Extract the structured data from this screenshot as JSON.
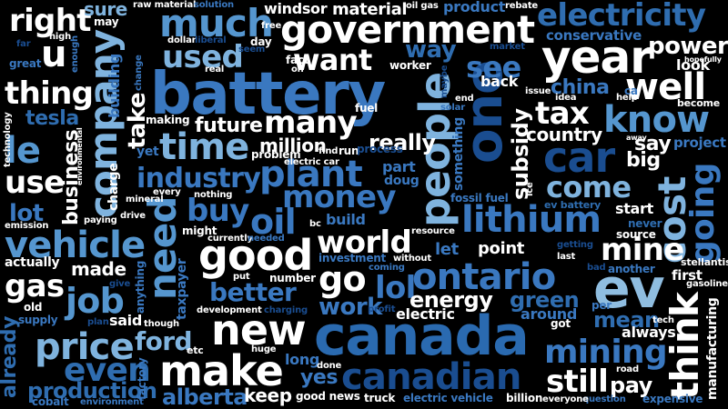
{
  "words": [
    {
      "text": "battery",
      "color": "#3a78c0"
    },
    {
      "text": "canada",
      "color": "#2a6ab0"
    },
    {
      "text": "government",
      "color": "#ffffff"
    },
    {
      "text": "ev",
      "color": "#8fbde0"
    },
    {
      "text": "one",
      "color": "#1a4d90"
    },
    {
      "text": "year",
      "color": "#ffffff"
    },
    {
      "text": "people",
      "color": "#7fb3de"
    },
    {
      "text": "much",
      "color": "#5596cf"
    },
    {
      "text": "company",
      "color": "#7fb3de"
    },
    {
      "text": "electricity",
      "color": "#2f6db0"
    },
    {
      "text": "car",
      "color": "#1a4d90"
    },
    {
      "text": "make",
      "color": "#ffffff"
    },
    {
      "text": "good",
      "color": "#ffffff"
    },
    {
      "text": "new",
      "color": "#ffffff"
    },
    {
      "text": "think",
      "color": "#ffffff"
    },
    {
      "text": "cost",
      "color": "#7fb3de"
    },
    {
      "text": "going",
      "color": "#3a78c0"
    },
    {
      "text": "lithium",
      "color": "#3a78c0"
    },
    {
      "text": "ontario",
      "color": "#3a78c0"
    },
    {
      "text": "canadian",
      "color": "#1a4d90"
    },
    {
      "text": "vehicle",
      "color": "#5596cf"
    },
    {
      "text": "price",
      "color": "#7fb3de"
    },
    {
      "text": "plant",
      "color": "#3a78c0"
    },
    {
      "text": "need",
      "color": "#5596cf"
    },
    {
      "text": "time",
      "color": "#7fb3de"
    },
    {
      "text": "know",
      "color": "#5596cf"
    },
    {
      "text": "well",
      "color": "#ffffff"
    },
    {
      "text": "mining",
      "color": "#3a78c0"
    },
    {
      "text": "even",
      "color": "#2f6db0"
    },
    {
      "text": "job",
      "color": "#5596cf"
    },
    {
      "text": "money",
      "color": "#3a78c0"
    },
    {
      "text": "oil",
      "color": "#3a78c0"
    },
    {
      "text": "world",
      "color": "#ffffff"
    },
    {
      "text": "mine",
      "color": "#ffffff"
    },
    {
      "text": "go",
      "color": "#ffffff"
    },
    {
      "text": "lol",
      "color": "#3a78c0"
    },
    {
      "text": "le",
      "color": "#5596cf"
    },
    {
      "text": "right",
      "color": "#ffffff"
    },
    {
      "text": "u",
      "color": "#ffffff"
    },
    {
      "text": "thing",
      "color": "#ffffff"
    },
    {
      "text": "want",
      "color": "#ffffff"
    },
    {
      "text": "used",
      "color": "#7fb3de"
    },
    {
      "text": "see",
      "color": "#3a78c0"
    },
    {
      "text": "tax",
      "color": "#ffffff"
    },
    {
      "text": "many",
      "color": "#ffffff"
    },
    {
      "text": "industry",
      "color": "#3a78c0"
    },
    {
      "text": "buy",
      "color": "#3a78c0"
    },
    {
      "text": "come",
      "color": "#7fb3de"
    },
    {
      "text": "better",
      "color": "#3a78c0"
    },
    {
      "text": "work",
      "color": "#3a78c0"
    },
    {
      "text": "still",
      "color": "#ffffff"
    },
    {
      "text": "use",
      "color": "#ffffff"
    },
    {
      "text": "gas",
      "color": "#ffffff"
    },
    {
      "text": "ford",
      "color": "#7fb3de"
    },
    {
      "text": "production",
      "color": "#2f6db0"
    },
    {
      "text": "alberta",
      "color": "#3a78c0"
    },
    {
      "text": "energy",
      "color": "#ffffff"
    },
    {
      "text": "green",
      "color": "#2f6db0"
    },
    {
      "text": "power",
      "color": "#ffffff"
    },
    {
      "text": "way",
      "color": "#2f6db0"
    },
    {
      "text": "china",
      "color": "#3a78c0"
    },
    {
      "text": "take",
      "color": "#ffffff"
    },
    {
      "text": "future",
      "color": "#ffffff"
    },
    {
      "text": "lot",
      "color": "#3a78c0"
    },
    {
      "text": "tesla",
      "color": "#2f6db0"
    },
    {
      "text": "business",
      "color": "#ffffff"
    },
    {
      "text": "subsidy",
      "color": "#ffffff"
    },
    {
      "text": "really",
      "color": "#ffffff"
    },
    {
      "text": "million",
      "color": "#ffffff"
    },
    {
      "text": "mean",
      "color": "#2f6db0"
    },
    {
      "text": "pay",
      "color": "#ffffff"
    },
    {
      "text": "yes",
      "color": "#3a78c0"
    },
    {
      "text": "keep",
      "color": "#ffffff"
    },
    {
      "text": "say",
      "color": "#ffffff"
    },
    {
      "text": "big",
      "color": "#ffffff"
    },
    {
      "text": "country",
      "color": "#ffffff"
    },
    {
      "text": "already",
      "color": "#2f6db0"
    },
    {
      "text": "made",
      "color": "#ffffff"
    },
    {
      "text": "sure",
      "color": "#7fb3de"
    },
    {
      "text": "material",
      "color": "#ffffff"
    },
    {
      "text": "windsor",
      "color": "#ffffff"
    },
    {
      "text": "product",
      "color": "#3a78c0"
    },
    {
      "text": "conservative",
      "color": "#3a78c0"
    },
    {
      "text": "look",
      "color": "#ffffff"
    },
    {
      "text": "back",
      "color": "#ffffff"
    },
    {
      "text": "project",
      "color": "#3a78c0"
    },
    {
      "text": "actually",
      "color": "#ffffff"
    },
    {
      "text": "build",
      "color": "#3a78c0"
    },
    {
      "text": "point",
      "color": "#ffffff"
    },
    {
      "text": "let",
      "color": "#3a78c0"
    },
    {
      "text": "start",
      "color": "#ffffff"
    },
    {
      "text": "first",
      "color": "#ffffff"
    },
    {
      "text": "said",
      "color": "#ffffff"
    },
    {
      "text": "always",
      "color": "#ffffff"
    },
    {
      "text": "around",
      "color": "#3a78c0"
    },
    {
      "text": "electric",
      "color": "#ffffff"
    },
    {
      "text": "long",
      "color": "#3a78c0"
    },
    {
      "text": "charge",
      "color": "#ffffff"
    },
    {
      "text": "building",
      "color": "#3a78c0"
    },
    {
      "text": "part",
      "color": "#3a78c0"
    },
    {
      "text": "doug",
      "color": "#3a78c0"
    },
    {
      "text": "something",
      "color": "#3a78c0"
    },
    {
      "text": "fossil fuel",
      "color": "#3a78c0"
    },
    {
      "text": "ev battery",
      "color": "#2f6db0"
    },
    {
      "text": "never",
      "color": "#2f6db0"
    },
    {
      "text": "source",
      "color": "#ffffff"
    },
    {
      "text": "getting",
      "color": "#1a4d90"
    },
    {
      "text": "another",
      "color": "#3a78c0"
    },
    {
      "text": "stellantis",
      "color": "#ffffff"
    },
    {
      "text": "gasoline",
      "color": "#ffffff"
    },
    {
      "text": "manufacturing",
      "color": "#ffffff"
    },
    {
      "text": "expensive",
      "color": "#3a78c0"
    },
    {
      "text": "question",
      "color": "#3a78c0"
    },
    {
      "text": "everyone",
      "color": "#ffffff"
    },
    {
      "text": "billion",
      "color": "#ffffff"
    },
    {
      "text": "electric vehicle",
      "color": "#3a78c0"
    },
    {
      "text": "truck",
      "color": "#ffffff"
    },
    {
      "text": "good news",
      "color": "#ffffff"
    },
    {
      "text": "done",
      "color": "#ffffff"
    },
    {
      "text": "huge",
      "color": "#ffffff"
    },
    {
      "text": "etc",
      "color": "#ffffff"
    },
    {
      "text": "though",
      "color": "#ffffff"
    },
    {
      "text": "factory",
      "color": "#3a78c0"
    },
    {
      "text": "environment",
      "color": "#3a78c0"
    },
    {
      "text": "cobalt",
      "color": "#3a78c0"
    },
    {
      "text": "plan",
      "color": "#1a4d90"
    },
    {
      "text": "supply",
      "color": "#3a78c0"
    },
    {
      "text": "old",
      "color": "#ffffff"
    },
    {
      "text": "taxpayer",
      "color": "#3a78c0"
    },
    {
      "text": "anything",
      "color": "#3a78c0"
    },
    {
      "text": "give",
      "color": "#1a4d90"
    },
    {
      "text": "put",
      "color": "#ffffff"
    },
    {
      "text": "development",
      "color": "#ffffff"
    },
    {
      "text": "charging",
      "color": "#1a4d90"
    },
    {
      "text": "number",
      "color": "#ffffff"
    },
    {
      "text": "investment",
      "color": "#3a78c0"
    },
    {
      "text": "coming",
      "color": "#3a78c0"
    },
    {
      "text": "profit",
      "color": "#1a4d90"
    },
    {
      "text": "without",
      "color": "#ffffff"
    },
    {
      "text": "resource",
      "color": "#ffffff"
    },
    {
      "text": "bc",
      "color": "#ffffff"
    },
    {
      "text": "currently",
      "color": "#ffffff"
    },
    {
      "text": "needed",
      "color": "#3a78c0"
    },
    {
      "text": "might",
      "color": "#ffffff"
    },
    {
      "text": "paying",
      "color": "#ffffff"
    },
    {
      "text": "drive",
      "color": "#ffffff"
    },
    {
      "text": "emission",
      "color": "#ffffff"
    },
    {
      "text": "mineral",
      "color": "#ffffff"
    },
    {
      "text": "every",
      "color": "#ffffff"
    },
    {
      "text": "nothing",
      "color": "#ffffff"
    },
    {
      "text": "electric car",
      "color": "#ffffff"
    },
    {
      "text": "find",
      "color": "#ffffff"
    },
    {
      "text": "run",
      "color": "#ffffff"
    },
    {
      "text": "process",
      "color": "#1a4d90"
    },
    {
      "text": "problem",
      "color": "#ffffff"
    },
    {
      "text": "yet",
      "color": "#3a78c0"
    },
    {
      "text": "technology",
      "color": "#ffffff"
    },
    {
      "text": "environmental",
      "color": "#ffffff"
    },
    {
      "text": "making",
      "color": "#ffffff"
    },
    {
      "text": "fuel",
      "color": "#ffffff"
    },
    {
      "text": "ice",
      "color": "#ffffff"
    },
    {
      "text": "solar",
      "color": "#3a78c0"
    },
    {
      "text": "end",
      "color": "#ffffff"
    },
    {
      "text": "maybe",
      "color": "#1a4d90"
    },
    {
      "text": "worker",
      "color": "#ffffff"
    },
    {
      "text": "fact",
      "color": "#ffffff"
    },
    {
      "text": "oh",
      "color": "#ffffff"
    },
    {
      "text": "real",
      "color": "#ffffff"
    },
    {
      "text": "seem",
      "color": "#1a4d90"
    },
    {
      "text": "free",
      "color": "#ffffff"
    },
    {
      "text": "day",
      "color": "#ffffff"
    },
    {
      "text": "dollar",
      "color": "#ffffff"
    },
    {
      "text": "liberal",
      "color": "#1a4d90"
    },
    {
      "text": "change",
      "color": "#3a78c0"
    },
    {
      "text": "enough",
      "color": "#3a78c0"
    },
    {
      "text": "high",
      "color": "#ffffff"
    },
    {
      "text": "far",
      "color": "#1a4d90"
    },
    {
      "text": "great",
      "color": "#3a78c0"
    },
    {
      "text": "may",
      "color": "#ffffff"
    },
    {
      "text": "raw material",
      "color": "#ffffff"
    },
    {
      "text": "solution",
      "color": "#3a78c0"
    },
    {
      "text": "oil gas",
      "color": "#ffffff"
    },
    {
      "text": "rebate",
      "color": "#ffffff"
    },
    {
      "text": "market",
      "color": "#1a4d90"
    },
    {
      "text": "hopefully",
      "color": "#ffffff"
    },
    {
      "text": "issue",
      "color": "#ffffff"
    },
    {
      "text": "idea",
      "color": "#ffffff"
    },
    {
      "text": "help",
      "color": "#ffffff"
    },
    {
      "text": "become",
      "color": "#ffffff"
    },
    {
      "text": "ca",
      "color": "#3a78c0"
    },
    {
      "text": "away",
      "color": "#ffffff"
    },
    {
      "text": "per",
      "color": "#3a78c0"
    },
    {
      "text": "tech",
      "color": "#ffffff"
    },
    {
      "text": "road",
      "color": "#ffffff"
    },
    {
      "text": "last",
      "color": "#ffffff"
    },
    {
      "text": "bad",
      "color": "#1a4d90"
    },
    {
      "text": "got",
      "color": "#ffffff"
    }
  ]
}
